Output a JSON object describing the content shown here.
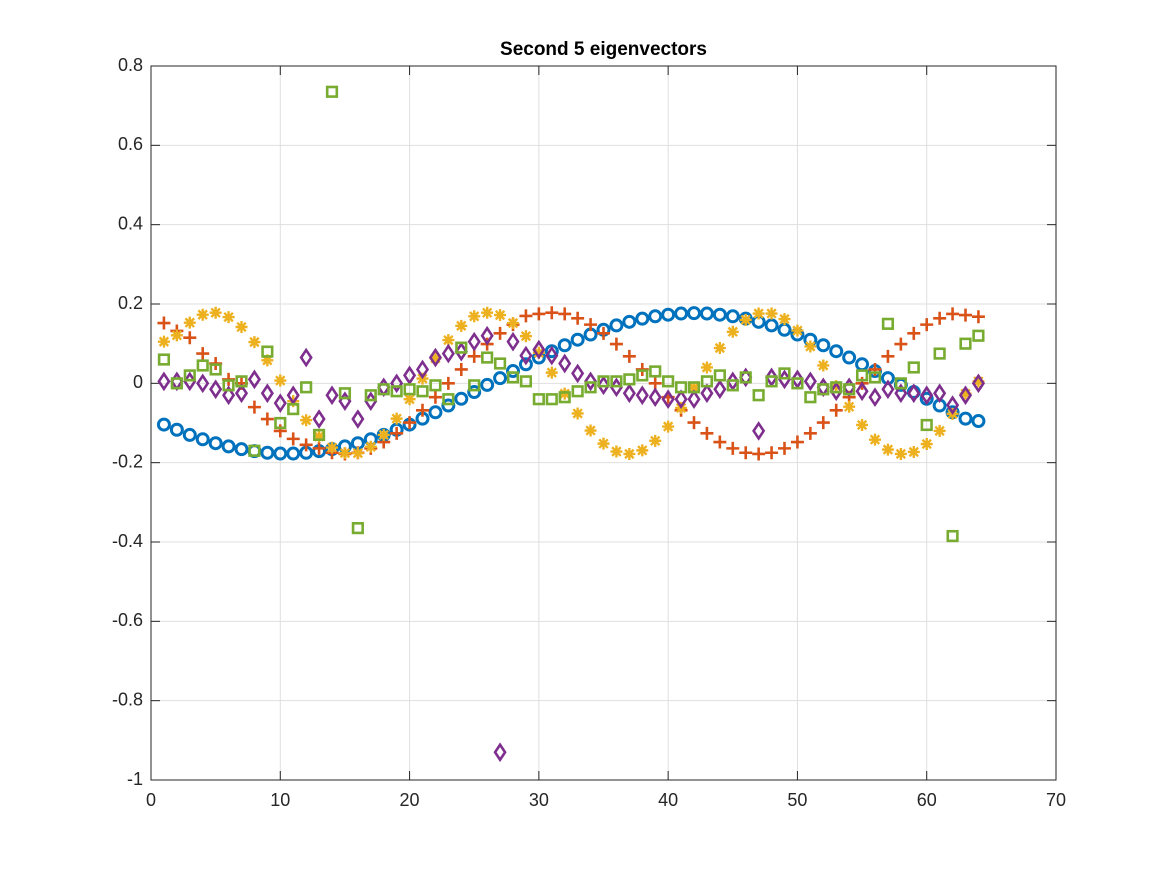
{
  "chart_data": {
    "type": "scatter",
    "title": "Second 5 eigenvectors",
    "x": [
      1,
      2,
      3,
      4,
      5,
      6,
      7,
      8,
      9,
      10,
      11,
      12,
      13,
      14,
      15,
      16,
      17,
      18,
      19,
      20,
      21,
      22,
      23,
      24,
      25,
      26,
      27,
      28,
      29,
      30,
      31,
      32,
      33,
      34,
      35,
      36,
      37,
      38,
      39,
      40,
      41,
      42,
      43,
      44,
      45,
      46,
      47,
      48,
      49,
      50,
      51,
      52,
      53,
      54,
      55,
      56,
      57,
      58,
      59,
      60,
      61,
      62,
      63,
      64
    ],
    "xlim": [
      0,
      70
    ],
    "xticks": [
      0,
      10,
      20,
      30,
      40,
      50,
      60,
      70
    ],
    "ylim": [
      -1,
      0.8
    ],
    "yticks": [
      -1,
      -0.8,
      -0.6,
      -0.4,
      -0.2,
      0,
      0.2,
      0.4,
      0.6,
      0.8
    ],
    "grid": true,
    "series": [
      {
        "color": "#0072BD",
        "marker": "circle",
        "values": [
          -0.104,
          -0.117,
          -0.13,
          -0.141,
          -0.151,
          -0.159,
          -0.166,
          -0.171,
          -0.175,
          -0.177,
          -0.177,
          -0.175,
          -0.171,
          -0.166,
          -0.159,
          -0.151,
          -0.141,
          -0.13,
          -0.117,
          -0.104,
          -0.089,
          -0.073,
          -0.056,
          -0.039,
          -0.022,
          -0.004,
          0.013,
          0.031,
          0.048,
          0.065,
          0.081,
          0.096,
          0.11,
          0.123,
          0.135,
          0.146,
          0.155,
          0.163,
          0.169,
          0.173,
          0.176,
          0.177,
          0.176,
          0.173,
          0.169,
          0.163,
          0.155,
          0.146,
          0.135,
          0.123,
          0.11,
          0.096,
          0.081,
          0.065,
          0.048,
          0.031,
          0.013,
          -0.004,
          -0.022,
          -0.039,
          -0.056,
          -0.073,
          -0.089,
          -0.095
        ]
      },
      {
        "color": "#D95319",
        "marker": "plus",
        "values": [
          0.152,
          0.132,
          0.115,
          0.075,
          0.05,
          0.01,
          0,
          -0.06,
          -0.09,
          -0.12,
          -0.14,
          -0.155,
          -0.164,
          -0.175,
          -0.178,
          -0.175,
          -0.164,
          -0.148,
          -0.126,
          -0.099,
          -0.068,
          -0.035,
          0,
          0.035,
          0.068,
          0.099,
          0.126,
          0.148,
          0.17,
          0.175,
          0.178,
          0.175,
          0.164,
          0.148,
          0.126,
          0.099,
          0.068,
          0.035,
          0,
          -0.035,
          -0.068,
          -0.099,
          -0.126,
          -0.148,
          -0.164,
          -0.175,
          -0.178,
          -0.175,
          -0.164,
          -0.148,
          -0.126,
          -0.099,
          -0.068,
          -0.035,
          0,
          0.035,
          0.068,
          0.099,
          0.126,
          0.148,
          0.164,
          0.175,
          0.172,
          0.168
        ]
      },
      {
        "color": "#EDB120",
        "marker": "asterisk",
        "values": [
          0.105,
          0.121,
          0.153,
          0.173,
          0.178,
          0.167,
          0.142,
          0.104,
          0.058,
          0.007,
          -0.045,
          -0.093,
          -0.134,
          -0.162,
          -0.176,
          -0.176,
          -0.16,
          -0.13,
          -0.089,
          -0.04,
          0.012,
          0.063,
          0.109,
          0.145,
          0.169,
          0.178,
          0.172,
          0.152,
          0.119,
          0.077,
          0.027,
          -0.026,
          -0.076,
          -0.119,
          -0.152,
          -0.172,
          -0.178,
          -0.169,
          -0.145,
          -0.109,
          -0.062,
          -0.011,
          0.04,
          0.089,
          0.13,
          0.16,
          0.176,
          0.176,
          0.162,
          0.133,
          0.093,
          0.045,
          -0.007,
          -0.059,
          -0.105,
          -0.142,
          -0.167,
          -0.178,
          -0.173,
          -0.153,
          -0.12,
          -0.077,
          -0.026,
          0.005
        ]
      },
      {
        "color": "#7E2F8E",
        "marker": "diamond",
        "values": [
          0.005,
          0.005,
          0.005,
          0,
          -0.015,
          -0.03,
          -0.025,
          0.01,
          -0.025,
          -0.05,
          -0.03,
          0.065,
          -0.09,
          -0.03,
          -0.045,
          -0.09,
          -0.045,
          -0.01,
          0,
          0.02,
          0.035,
          0.065,
          0.075,
          0.08,
          0.105,
          0.12,
          -0.93,
          0.105,
          0.07,
          0.085,
          0.07,
          0.05,
          0.025,
          0.005,
          -0.005,
          -0.01,
          -0.025,
          -0.03,
          -0.035,
          -0.04,
          -0.04,
          -0.04,
          -0.025,
          -0.015,
          0.005,
          0.015,
          -0.12,
          0.015,
          0.01,
          0.01,
          0.005,
          -0.01,
          -0.02,
          -0.01,
          -0.02,
          -0.035,
          -0.015,
          -0.025,
          -0.025,
          -0.03,
          -0.025,
          -0.055,
          -0.03,
          0
        ]
      },
      {
        "color": "#77AC30",
        "marker": "square",
        "values": [
          0.06,
          0,
          0.02,
          0.045,
          0.035,
          -0.005,
          0.005,
          -0.17,
          0.08,
          -0.1,
          -0.065,
          -0.01,
          -0.13,
          0.735,
          -0.025,
          -0.365,
          -0.03,
          -0.015,
          -0.02,
          -0.015,
          -0.02,
          -0.005,
          -0.04,
          0.09,
          -0.005,
          0.065,
          0.05,
          0.015,
          0.005,
          -0.04,
          -0.04,
          -0.035,
          -0.02,
          -0.01,
          0.005,
          0.005,
          0.01,
          0.02,
          0.03,
          0.005,
          -0.01,
          -0.01,
          0.005,
          0.02,
          -0.005,
          0.015,
          -0.03,
          0.005,
          0.025,
          0,
          -0.035,
          -0.015,
          -0.01,
          -0.015,
          0.02,
          0.015,
          0.15,
          0,
          0.04,
          -0.105,
          0.075,
          -0.385,
          0.1,
          0.12
        ]
      }
    ]
  }
}
